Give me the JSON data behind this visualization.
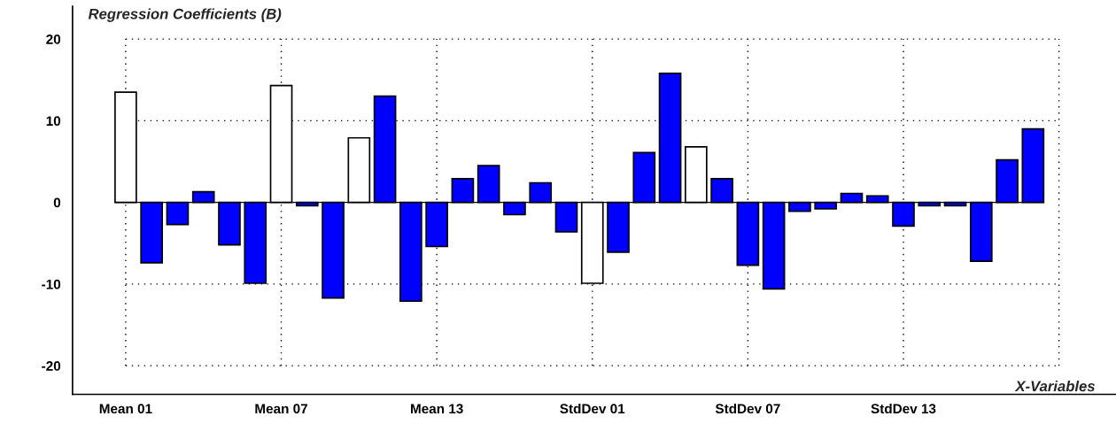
{
  "chart_data": {
    "type": "bar",
    "title": "Regression Coefficients (B)",
    "xlabel": "X-Variables",
    "categories": [
      "Mean 01",
      null,
      null,
      null,
      null,
      null,
      "Mean 07",
      null,
      null,
      null,
      null,
      null,
      "Mean 13",
      null,
      null,
      null,
      null,
      null,
      "StdDev 01",
      null,
      null,
      null,
      null,
      null,
      "StdDev 07",
      null,
      null,
      null,
      null,
      null,
      "StdDev 13",
      null,
      null,
      null,
      null,
      null
    ],
    "values": [
      13.5,
      -7.4,
      -2.7,
      1.3,
      -5.2,
      -9.9,
      14.3,
      -0.4,
      -11.7,
      7.9,
      13.0,
      -12.1,
      -5.4,
      2.9,
      4.5,
      -1.5,
      2.4,
      -3.6,
      -9.9,
      -6.1,
      6.1,
      15.8,
      6.8,
      2.9,
      -7.7,
      -10.6,
      -1.1,
      -0.8,
      1.1,
      0.8,
      -2.9,
      -0.4,
      -0.4,
      -7.2,
      5.2,
      9.0
    ],
    "colors": [
      "#ffffff",
      "#0000ff",
      "#0000ff",
      "#0000ff",
      "#0000ff",
      "#0000ff",
      "#ffffff",
      "#0000ff",
      "#0000ff",
      "#ffffff",
      "#0000ff",
      "#0000ff",
      "#0000ff",
      "#0000ff",
      "#0000ff",
      "#0000ff",
      "#0000ff",
      "#0000ff",
      "#ffffff",
      "#0000ff",
      "#0000ff",
      "#0000ff",
      "#ffffff",
      "#0000ff",
      "#0000ff",
      "#0000ff",
      "#0000ff",
      "#0000ff",
      "#0000ff",
      "#0000ff",
      "#0000ff",
      "#0000ff",
      "#0000ff",
      "#0000ff",
      "#0000ff",
      "#0000ff"
    ],
    "ylim": [
      -23.5,
      24
    ],
    "yticks": [
      -20,
      -10,
      0,
      10,
      20
    ],
    "grid": true
  }
}
